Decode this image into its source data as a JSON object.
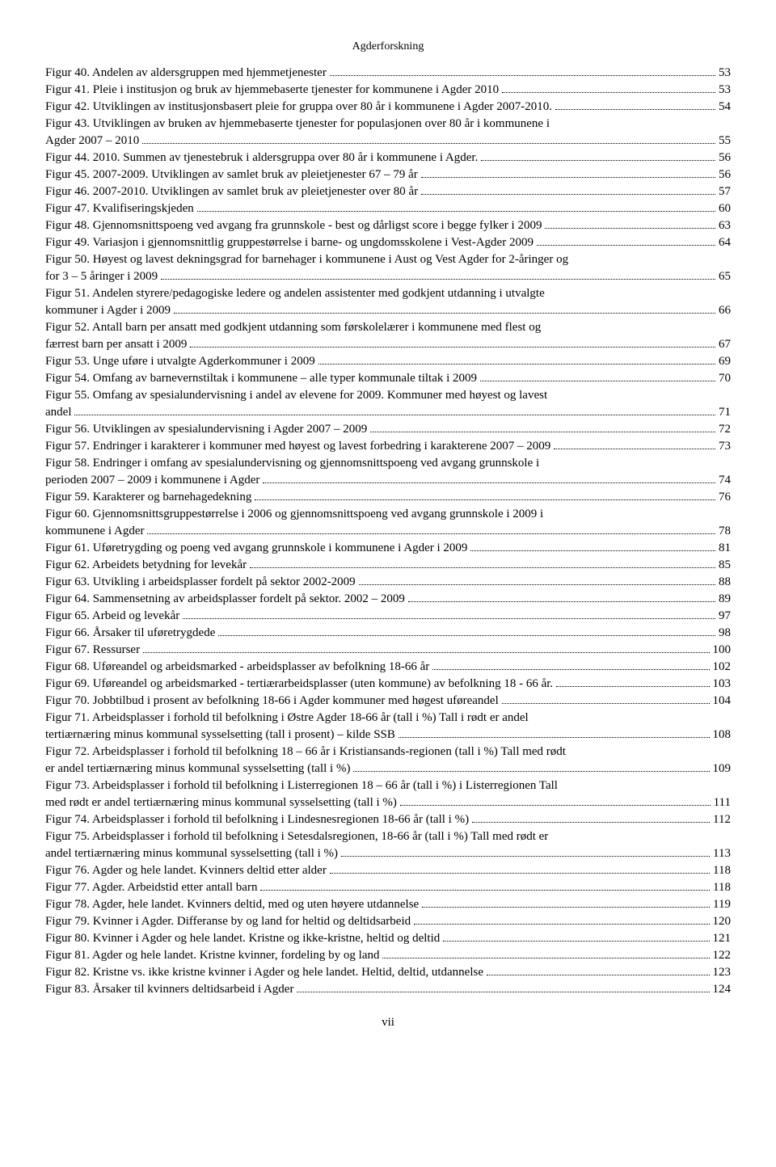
{
  "header": "Agderforskning",
  "footer": "vii",
  "entries": [
    {
      "text": "Figur 40. Andelen av aldersgruppen med hjemmetjenester",
      "page": "53"
    },
    {
      "text": "Figur 41. Pleie i institusjon og bruk av hjemmebaserte tjenester for kommunene i Agder 2010",
      "page": "53"
    },
    {
      "text": "Figur 42. Utviklingen av institusjonsbasert pleie for gruppa over 80 år i kommunene i Agder 2007-2010.",
      "page": "54"
    },
    {
      "cont": "Figur 43. Utviklingen av bruken av hjemmebaserte tjenester for populasjonen over 80 år i kommunene i",
      "text": "Agder 2007 – 2010",
      "page": "55"
    },
    {
      "text": "Figur 44. 2010. Summen av tjenestebruk i aldersgruppa over 80 år i kommunene i Agder.",
      "page": "56"
    },
    {
      "text": "Figur 45. 2007-2009. Utviklingen av samlet bruk av pleietjenester 67 – 79 år",
      "page": "56"
    },
    {
      "text": "Figur 46. 2007-2010. Utviklingen av samlet bruk av pleietjenester over 80 år",
      "page": "57"
    },
    {
      "text": "Figur 47. Kvalifiseringskjeden",
      "page": "60"
    },
    {
      "text": "Figur 48. Gjennomsnittspoeng ved avgang fra grunnskole - best og dårligst score i begge fylker i 2009",
      "page": "63"
    },
    {
      "text": "Figur 49. Variasjon i gjennomsnittlig gruppestørrelse i barne- og ungdomsskolene i Vest-Agder 2009",
      "page": "64"
    },
    {
      "cont": "Figur 50. Høyest og lavest dekningsgrad for barnehager i kommunene i Aust og Vest Agder for 2-åringer og",
      "text": "for 3 – 5 åringer i 2009",
      "page": "65"
    },
    {
      "cont": "Figur 51. Andelen styrere/pedagogiske ledere og andelen assistenter med godkjent utdanning i utvalgte",
      "text": "kommuner i Agder i 2009",
      "page": "66"
    },
    {
      "cont": "Figur 52. Antall barn per ansatt med godkjent utdanning som førskolelærer i kommunene med flest og",
      "text": "færrest barn per ansatt i 2009",
      "page": "67"
    },
    {
      "text": "Figur 53. Unge uføre i utvalgte Agderkommuner i 2009",
      "page": "69"
    },
    {
      "text": "Figur 54. Omfang av barnevernstiltak i kommunene – alle typer kommunale tiltak i 2009",
      "page": "70"
    },
    {
      "cont": "Figur 55. Omfang av spesialundervisning i andel av elevene for 2009. Kommuner med høyest og lavest",
      "text": "andel",
      "page": "71"
    },
    {
      "text": "Figur 56. Utviklingen av spesialundervisning i Agder 2007 – 2009",
      "page": "72"
    },
    {
      "text": "Figur 57. Endringer i karakterer i kommuner med høyest og lavest forbedring i karakterene 2007 – 2009",
      "page": "73"
    },
    {
      "cont": "Figur 58. Endringer i omfang av spesialundervisning og gjennomsnittspoeng ved avgang grunnskole i",
      "text": "perioden 2007 – 2009 i kommunene i Agder",
      "page": "74"
    },
    {
      "text": "Figur 59. Karakterer og barnehagedekning",
      "page": "76"
    },
    {
      "cont": "Figur 60. Gjennomsnittsgruppestørrelse i 2006 og gjennomsnittspoeng ved avgang grunnskole i 2009 i",
      "text": "kommunene i Agder",
      "page": "78"
    },
    {
      "text": "Figur 61. Uføretrygding og poeng ved avgang grunnskole i kommunene i Agder i 2009",
      "page": "81"
    },
    {
      "text": "Figur 62. Arbeidets betydning for levekår",
      "page": "85"
    },
    {
      "text": "Figur 63. Utvikling i arbeidsplasser fordelt på sektor 2002-2009",
      "page": "88"
    },
    {
      "text": "Figur 64. Sammensetning av arbeidsplasser fordelt på sektor. 2002 – 2009",
      "page": "89"
    },
    {
      "text": "Figur 65. Arbeid og levekår",
      "page": "97"
    },
    {
      "text": "Figur 66. Årsaker til uføretrygdede",
      "page": "98"
    },
    {
      "text": "Figur 67. Ressurser",
      "page": "100"
    },
    {
      "text": "Figur 68. Uføreandel og arbeidsmarked - arbeidsplasser av befolkning 18-66 år",
      "page": "102"
    },
    {
      "text": "Figur 69. Uføreandel og arbeidsmarked - tertiærarbeidsplasser (uten kommune) av befolkning 18 - 66 år.",
      "page": "103"
    },
    {
      "text": "Figur 70. Jobbtilbud i prosent av befolkning 18-66 i Agder kommuner med høgest uføreandel",
      "page": "104"
    },
    {
      "cont": "Figur 71. Arbeidsplasser i forhold til befolkning i Østre Agder 18-66 år (tall i %) Tall i rødt er andel",
      "text": "tertiærnæring minus kommunal sysselsetting (tall i prosent) – kilde SSB",
      "page": "108"
    },
    {
      "cont": "Figur 72. Arbeidsplasser i forhold til befolkning 18 – 66 år i Kristiansands-regionen (tall i %) Tall med rødt",
      "text": "er andel tertiærnæring minus kommunal sysselsetting (tall i %)",
      "page": "109"
    },
    {
      "cont": "Figur 73. Arbeidsplasser i forhold til befolkning i Listerregionen 18 – 66 år (tall i %) i Listerregionen Tall",
      "text": "med rødt er andel tertiærnæring minus kommunal sysselsetting (tall i %)",
      "page": "111"
    },
    {
      "text": "Figur 74. Arbeidsplasser i forhold til befolkning i Lindesnesregionen 18-66 år (tall i %)",
      "page": "112"
    },
    {
      "cont": "Figur 75. Arbeidsplasser i forhold til befolkning i Setesdalsregionen, 18-66 år (tall i %) Tall med rødt er",
      "text": "andel tertiærnæring minus kommunal sysselsetting (tall i %)",
      "page": "113"
    },
    {
      "text": "Figur 76. Agder og hele landet. Kvinners deltid etter alder",
      "page": "118"
    },
    {
      "text": "Figur 77. Agder. Arbeidstid etter antall barn",
      "page": "118"
    },
    {
      "text": "Figur 78. Agder, hele landet. Kvinners deltid, med og uten høyere utdannelse",
      "page": "119"
    },
    {
      "text": "Figur 79. Kvinner i Agder. Differanse by og land for heltid og deltidsarbeid",
      "page": "120"
    },
    {
      "text": "Figur 80. Kvinner i Agder og hele landet. Kristne og ikke-kristne, heltid og deltid",
      "page": "121"
    },
    {
      "text": "Figur 81. Agder og hele landet. Kristne kvinner, fordeling by og land",
      "page": "122"
    },
    {
      "text": "Figur 82. Kristne vs. ikke kristne kvinner i Agder og hele landet. Heltid, deltid, utdannelse",
      "page": "123"
    },
    {
      "text": "Figur 83. Årsaker til kvinners deltidsarbeid i Agder",
      "page": "124"
    }
  ]
}
